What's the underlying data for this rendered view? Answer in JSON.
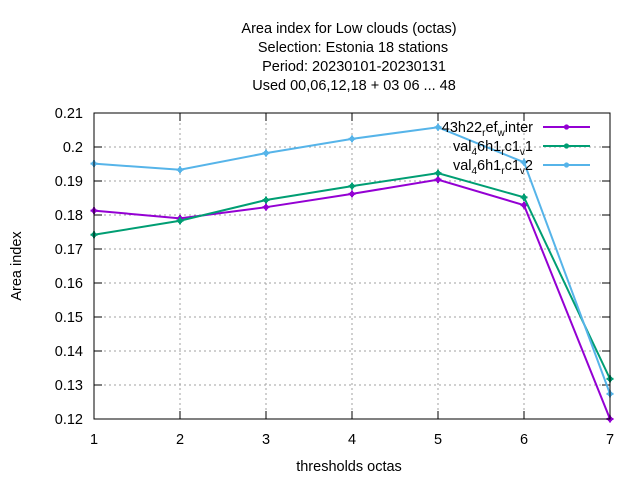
{
  "chart_data": {
    "type": "line",
    "title_lines": [
      "Area index  for Low clouds (octas)",
      "Selection: Estonia      18 stations",
      "Period: 20230101-20230131",
      "Used  00,06,12,18  + 03 06 ... 48"
    ],
    "xlabel": "thresholds octas",
    "ylabel": "Area index",
    "x": [
      1,
      2,
      3,
      4,
      5,
      6,
      7
    ],
    "xlim": [
      1,
      7
    ],
    "ylim": [
      0.12,
      0.21
    ],
    "yticks": [
      0.12,
      0.13,
      0.14,
      0.15,
      0.16,
      0.17,
      0.18,
      0.19,
      0.2,
      0.21
    ],
    "ytick_labels": [
      "0.12",
      "0.13",
      "0.14",
      "0.15",
      "0.16",
      "0.17",
      "0.18",
      "0.19",
      "0.2",
      "0.21"
    ],
    "xtick_labels": [
      "1",
      "2",
      "3",
      "4",
      "5",
      "6",
      "7"
    ],
    "grid": true,
    "legend_position": "top-right",
    "series": [
      {
        "name": "43h22_ref_winter",
        "legend": [
          {
            "t": "43h22"
          },
          {
            "t": "r",
            "sub": true
          },
          {
            "t": "ef"
          },
          {
            "t": "w",
            "sub": true
          },
          {
            "t": "inter"
          }
        ],
        "color": "#9400d3",
        "values": [
          0.1813,
          0.179,
          0.1823,
          0.1862,
          0.1904,
          0.1829,
          0.12
        ]
      },
      {
        "name": "val_46h1_rc1_v1",
        "legend": [
          {
            "t": "val"
          },
          {
            "t": "4",
            "sub": true
          },
          {
            "t": "6h1"
          },
          {
            "t": "r",
            "sub": true
          },
          {
            "t": "c1"
          },
          {
            "t": "v",
            "sub": true
          },
          {
            "t": "1"
          }
        ],
        "color": "#009e73",
        "values": [
          0.1742,
          0.1783,
          0.1844,
          0.1885,
          0.1923,
          0.1852,
          0.1318
        ]
      },
      {
        "name": "val_46h1_rc1_v2",
        "legend": [
          {
            "t": "val"
          },
          {
            "t": "4",
            "sub": true
          },
          {
            "t": "6h1"
          },
          {
            "t": "r",
            "sub": true
          },
          {
            "t": "c1"
          },
          {
            "t": "v",
            "sub": true
          },
          {
            "t": "2"
          }
        ],
        "color": "#56b4e9",
        "values": [
          0.1951,
          0.1933,
          0.1982,
          0.2024,
          0.2058,
          0.1955,
          0.1274
        ]
      }
    ]
  }
}
